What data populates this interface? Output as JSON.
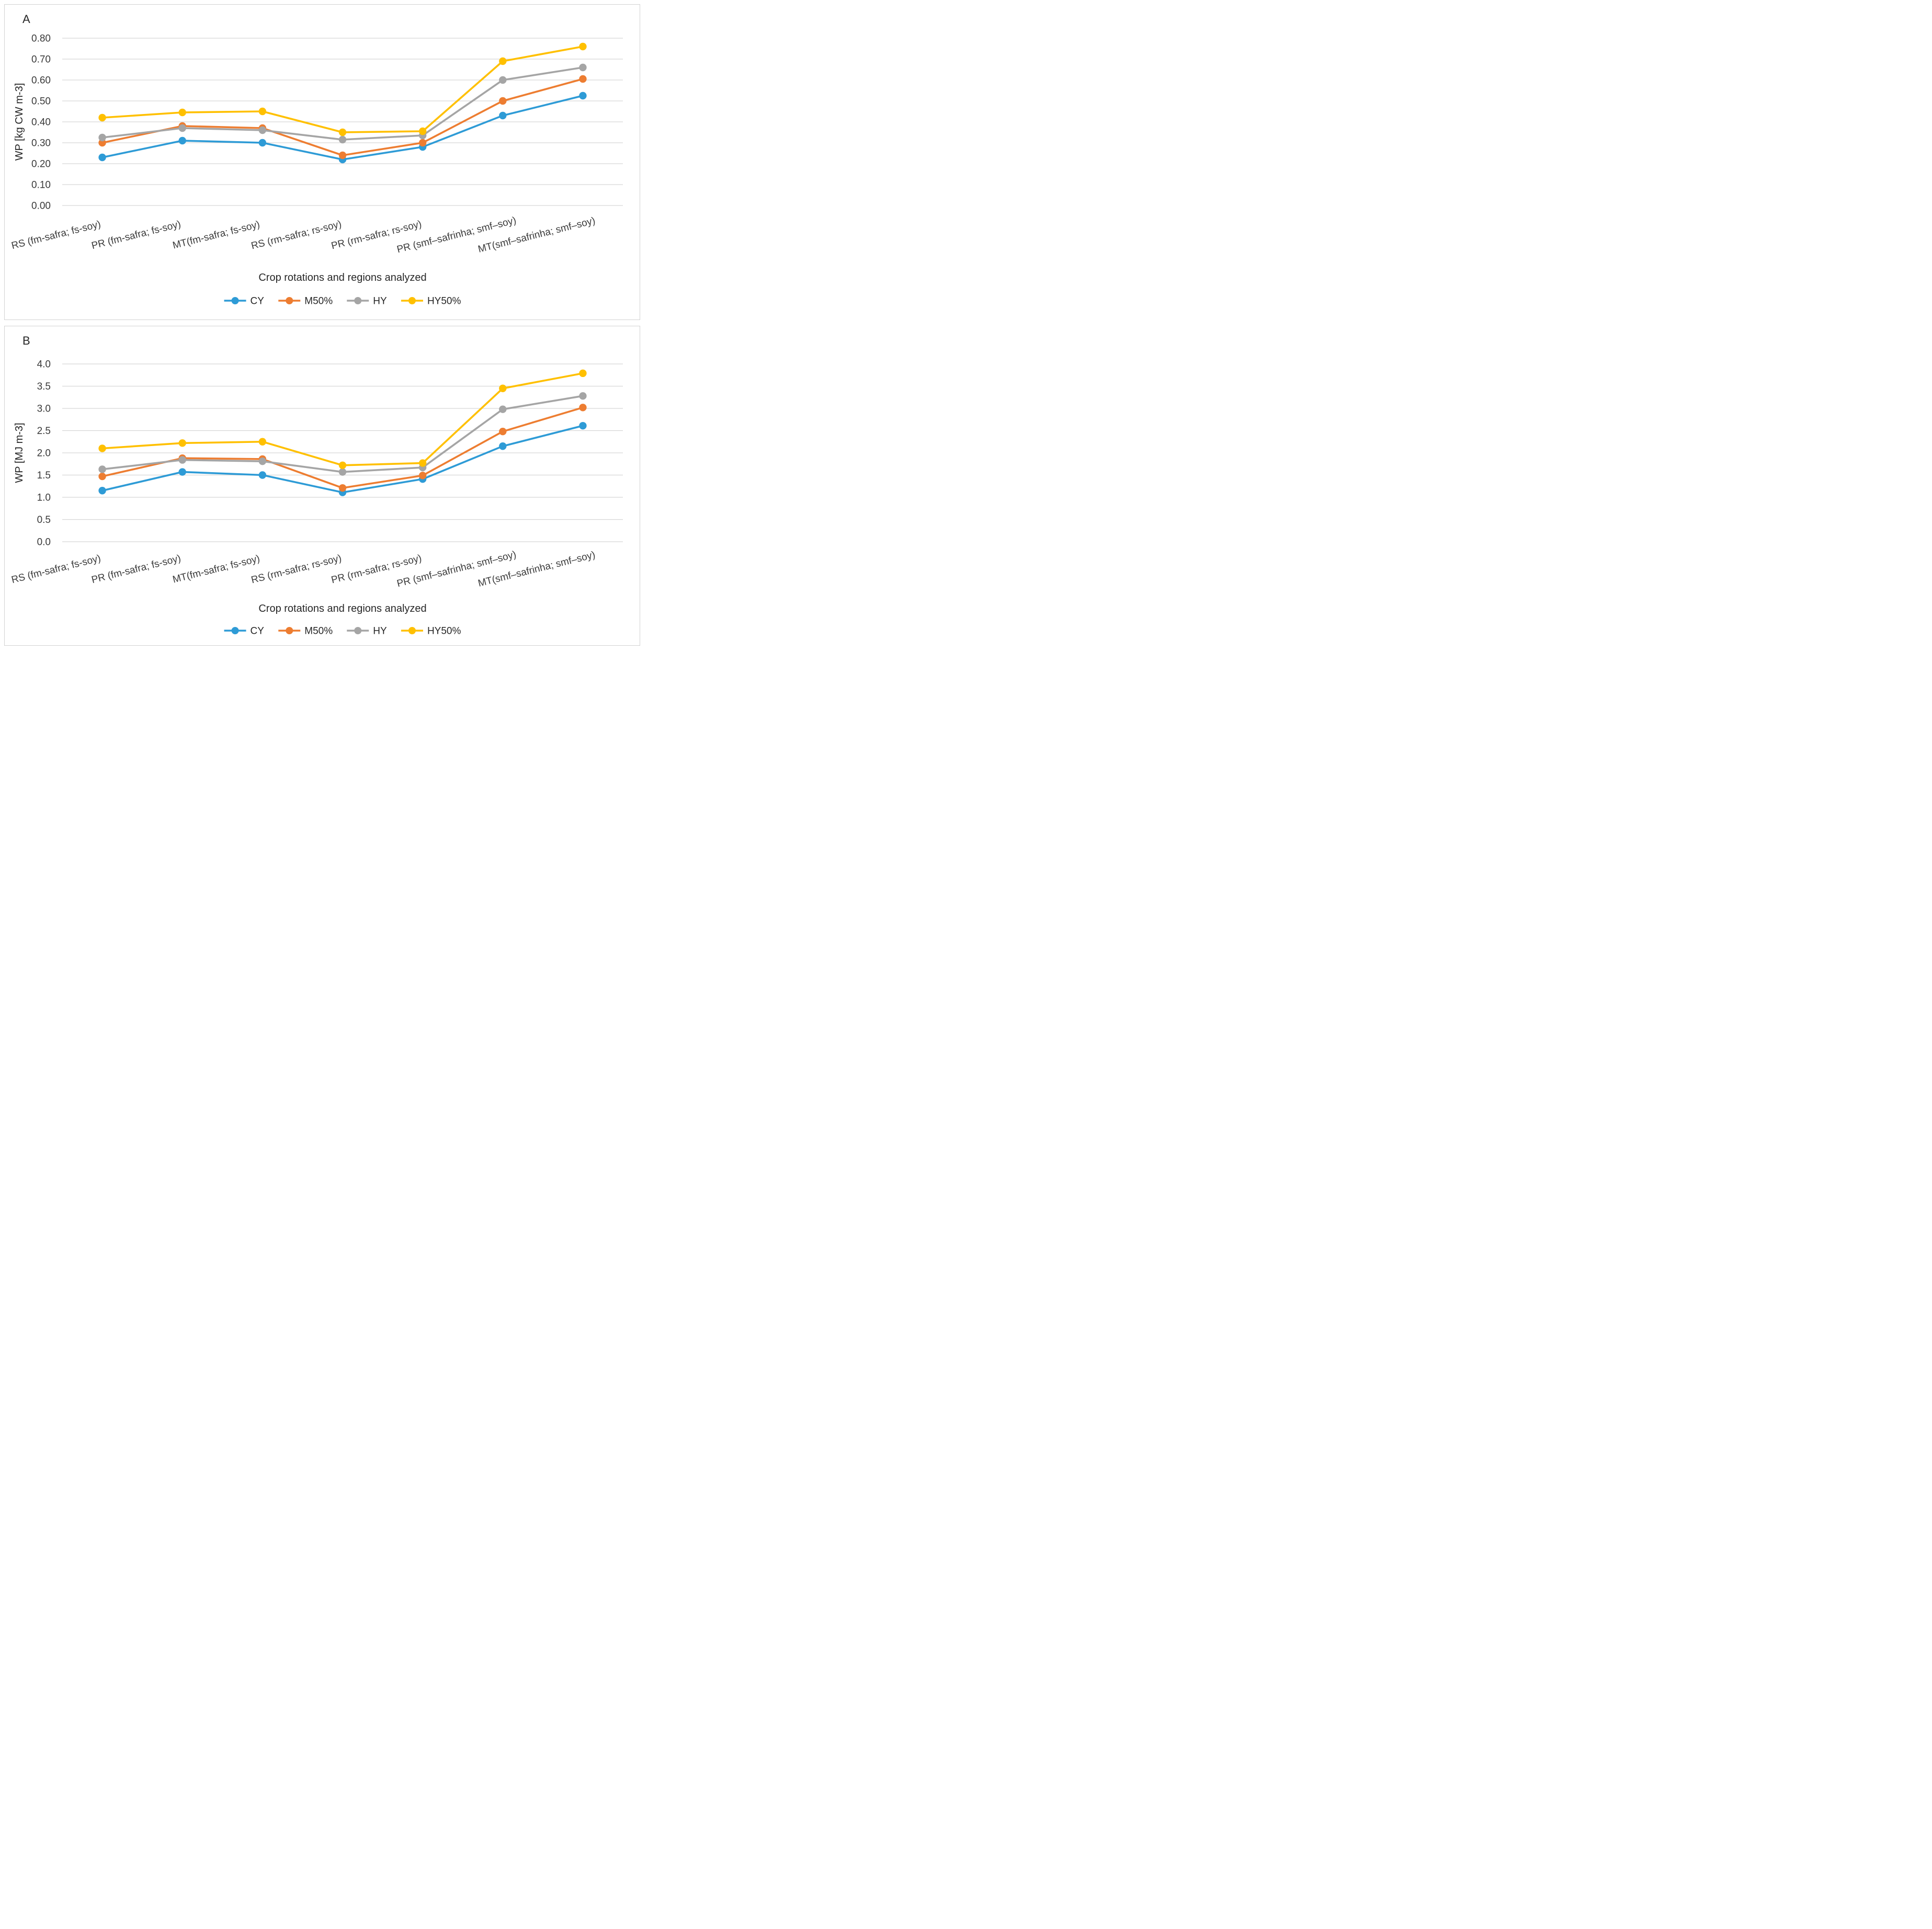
{
  "figure": {
    "panels": [
      {
        "label": "A"
      },
      {
        "label": "B"
      }
    ]
  },
  "styles": {
    "gridline_color": "#d6d6d6",
    "panel_border_color": "#d2d2d2",
    "tick_text_color": "#3a3a3a",
    "title_text_color": "#262626",
    "series_colors": {
      "CY": "#2E9BD6",
      "M50%": "#ED7D31",
      "HY": "#A5A5A5",
      "HY50%": "#FFC000"
    }
  },
  "chart_data": [
    {
      "type": "line",
      "panel_label": "A",
      "categories": [
        "RS (fm-safra; fs-soy)",
        "PR (fm-safra; fs-soy)",
        "MT(fm-safra; fs-soy)",
        "RS (rm-safra; rs-soy)",
        "PR (rm-safra; rs-soy)",
        "PR (smf–safrinha; smf–soy)",
        "MT(smf–safrinha; smf–soy)"
      ],
      "series": [
        {
          "name": "CY",
          "color": "#2E9BD6",
          "values": [
            0.23,
            0.31,
            0.3,
            0.22,
            0.28,
            0.43,
            0.525
          ]
        },
        {
          "name": "M50%",
          "color": "#ED7D31",
          "values": [
            0.3,
            0.38,
            0.37,
            0.24,
            0.3,
            0.5,
            0.605
          ]
        },
        {
          "name": "HY",
          "color": "#A5A5A5",
          "values": [
            0.325,
            0.37,
            0.36,
            0.315,
            0.335,
            0.6,
            0.66
          ]
        },
        {
          "name": "HY50%",
          "color": "#FFC000",
          "values": [
            0.42,
            0.445,
            0.45,
            0.35,
            0.355,
            0.69,
            0.76
          ]
        }
      ],
      "xlabel": "Crop rotations and regions analyzed",
      "ylabel": "WP [kg CW m-3]",
      "ylim": [
        0,
        0.8
      ],
      "yticks": [
        "0.80",
        "0.70",
        "0.60",
        "0.50",
        "0.40",
        "0.30",
        "0.20",
        "0.10",
        "0.00"
      ],
      "grid": true,
      "legend_position": "bottom",
      "marker": "circle"
    },
    {
      "type": "line",
      "panel_label": "B",
      "categories": [
        "RS (fm-safra; fs-soy)",
        "PR (fm-safra; fs-soy)",
        "MT(fm-safra; fs-soy)",
        "RS (rm-safra; rs-soy)",
        "PR (rm-safra; rs-soy)",
        "PR (smf–safrinha; smf–soy)",
        "MT(smf–safrinha; smf–soy)"
      ],
      "series": [
        {
          "name": "CY",
          "color": "#2E9BD6",
          "values": [
            1.15,
            1.57,
            1.5,
            1.11,
            1.41,
            2.15,
            2.61
          ]
        },
        {
          "name": "M50%",
          "color": "#ED7D31",
          "values": [
            1.47,
            1.88,
            1.86,
            1.21,
            1.49,
            2.48,
            3.02
          ]
        },
        {
          "name": "HY",
          "color": "#A5A5A5",
          "values": [
            1.63,
            1.84,
            1.81,
            1.57,
            1.67,
            2.98,
            3.28
          ]
        },
        {
          "name": "HY50%",
          "color": "#FFC000",
          "values": [
            2.1,
            2.22,
            2.25,
            1.72,
            1.77,
            3.45,
            3.79
          ]
        }
      ],
      "xlabel": "Crop rotations and regions analyzed",
      "ylabel": "WP [MJ m-3]",
      "ylim": [
        0,
        4
      ],
      "yticks": [
        "4.0",
        "3.5",
        "3.0",
        "2.5",
        "2.0",
        "1.5",
        "1.0",
        "0.5",
        "0.0"
      ],
      "grid": true,
      "legend_position": "bottom",
      "marker": "circle"
    }
  ]
}
